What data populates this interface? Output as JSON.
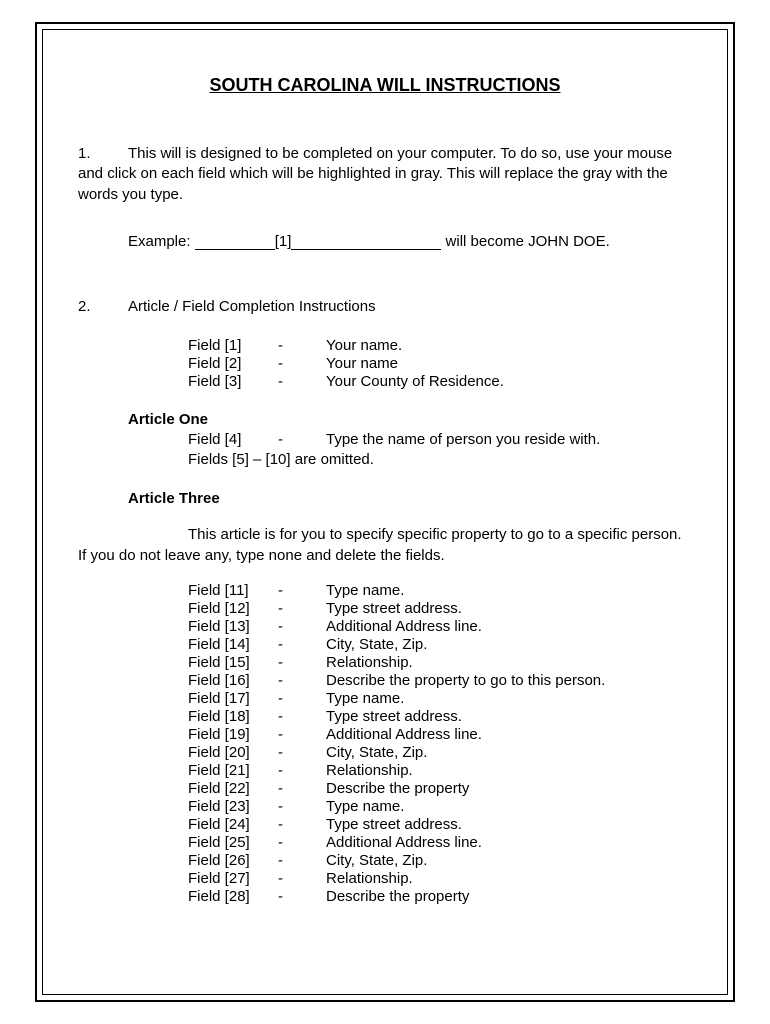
{
  "title": "SOUTH CAROLINA WILL INSTRUCTIONS",
  "para1_num": "1.",
  "para1_text": "This will is designed to be completed on your computer.  To do so, use your mouse and click on each field which will be highlighted in gray.  This will replace the gray with the words you type.",
  "example_label": "Example:",
  "example_mid": "[1]",
  "example_tail": " will become JOHN DOE.",
  "para2_num": "2.",
  "para2_text": "Article / Field Completion Instructions",
  "fields_top": [
    {
      "f": "Field [1]",
      "d": "-",
      "v": "Your name."
    },
    {
      "f": "Field [2]",
      "d": "-",
      "v": "Your name"
    },
    {
      "f": "Field [3]",
      "d": "-",
      "v": "Your County of Residence."
    }
  ],
  "article_one_heading": "Article One",
  "article_one_field": {
    "f": "Field [4]",
    "d": "-",
    "v": "Type the name of person you reside with."
  },
  "article_one_omitted": "Fields [5] – [10] are omitted.",
  "article_three_heading": "Article Three",
  "article_three_para": "This article is for you to specify specific property to go to a specific person.  If you do not leave any, type none and delete the fields.",
  "fields_long": [
    {
      "f": "Field [11]",
      "d": "-",
      "v": "Type name."
    },
    {
      "f": "Field [12]",
      "d": "-",
      "v": "Type street address."
    },
    {
      "f": "Field [13]",
      "d": "-",
      "v": "Additional Address line."
    },
    {
      "f": "Field [14]",
      "d": "-",
      "v": "City, State, Zip."
    },
    {
      "f": "Field [15]",
      "d": "-",
      "v": "Relationship."
    },
    {
      "f": "Field [16]",
      "d": "-",
      "v": "Describe the property to go to this person."
    },
    {
      "f": "Field [17]",
      "d": "-",
      "v": "Type name."
    },
    {
      "f": "Field [18]",
      "d": "-",
      "v": "Type street address."
    },
    {
      "f": "Field [19]",
      "d": "-",
      "v": "Additional Address line."
    },
    {
      "f": "Field [20]",
      "d": "-",
      "v": "City, State, Zip."
    },
    {
      "f": "Field [21]",
      "d": "-",
      "v": "Relationship."
    },
    {
      "f": "Field [22]",
      "d": "-",
      "v": "Describe the property"
    },
    {
      "f": "Field [23]",
      "d": "-",
      "v": "Type name."
    },
    {
      "f": "Field [24]",
      "d": "-",
      "v": "Type street address."
    },
    {
      "f": "Field [25]",
      "d": "-",
      "v": "Additional Address line."
    },
    {
      "f": "Field [26]",
      "d": "-",
      "v": "City, State, Zip."
    },
    {
      "f": "Field [27]",
      "d": "-",
      "v": "Relationship."
    },
    {
      "f": "Field [28]",
      "d": "-",
      "v": "Describe the property"
    }
  ]
}
